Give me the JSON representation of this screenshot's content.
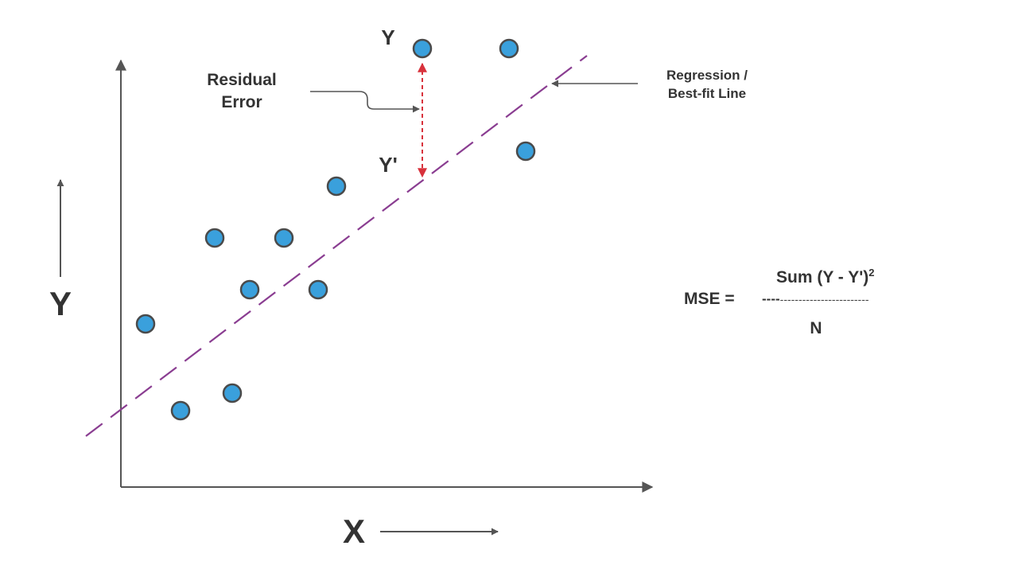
{
  "axes": {
    "x_label": "X",
    "y_label": "Y"
  },
  "annotations": {
    "y_actual": "Y",
    "y_predicted": "Y'",
    "residual_line1": "Residual",
    "residual_line2": "Error",
    "regression_line1": "Regression /",
    "regression_line2": "Best-fit Line"
  },
  "formula": {
    "lhs": "MSE =",
    "numerator": "Sum (Y - Y')",
    "exponent": "2",
    "bar_bold": "----",
    "bar_rest": "------------------------",
    "denominator": "N"
  },
  "colors": {
    "point_fill": "#3aa0dc",
    "point_stroke": "#4a4a4a",
    "regression_line": "#8a3d91",
    "residual_arrow": "#d8323c",
    "axis": "#555555",
    "text": "#333333"
  }
}
